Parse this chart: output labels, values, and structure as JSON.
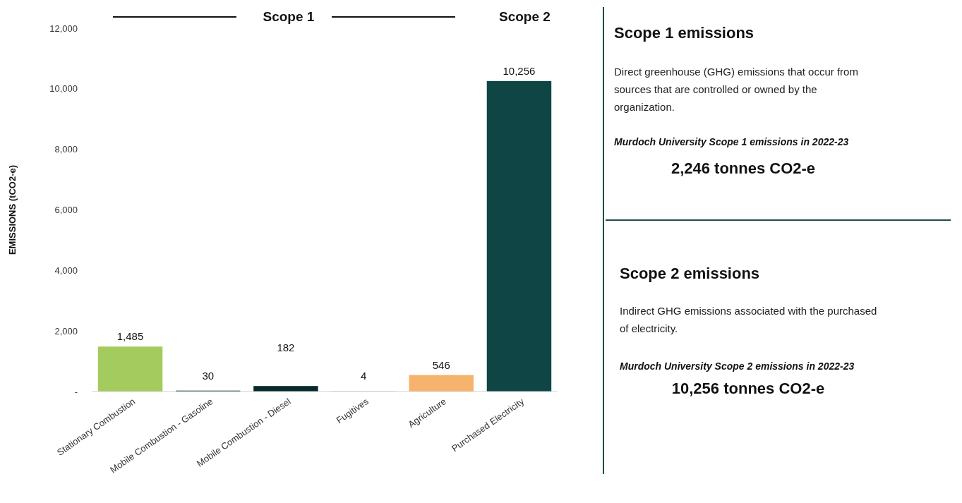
{
  "chart_data": {
    "type": "bar",
    "ylabel": "EMISSIONS (tCO2-e)",
    "categories": [
      "Stationary Combustion",
      "Mobile Combustion - Gasoline",
      "Mobile Combustion - Diesel",
      "Fugitives",
      "Agriculture",
      "Purchased Electricity"
    ],
    "values": [
      1485,
      30,
      182,
      4,
      546,
      10256
    ],
    "colors": [
      "#a4cb5e",
      "#0d3535",
      "#062a2a",
      "#0d3535",
      "#f6b36e",
      "#0f4545"
    ],
    "value_labels": [
      "1,485",
      "30",
      "182",
      "4",
      "546",
      "10,256"
    ],
    "ylim": [
      0,
      12000
    ],
    "yticks": [
      {
        "value": 0,
        "label": "-"
      },
      {
        "value": 2000,
        "label": "2,000"
      },
      {
        "value": 4000,
        "label": "4,000"
      },
      {
        "value": 6000,
        "label": "6,000"
      },
      {
        "value": 8000,
        "label": "8,000"
      },
      {
        "value": 10000,
        "label": "10,000"
      },
      {
        "value": 12000,
        "label": "12,000"
      }
    ],
    "annotations": [
      "Scope 1",
      "Scope 2",
      "Scope 1 emissions",
      "Direct greenhouse (GHG) emissions that occur from sources that are controlled or owned by the organization.",
      "Murdoch University Scope 1 emissions in 2022-23",
      "2,246 tonnes CO2-e",
      "Scope 2 emissions",
      "Indirect GHG emissions associated with the purchased of electricity.",
      "Murdoch University Scope 2 emissions in 2022-23",
      "10,256 tonnes CO2-e"
    ]
  }
}
